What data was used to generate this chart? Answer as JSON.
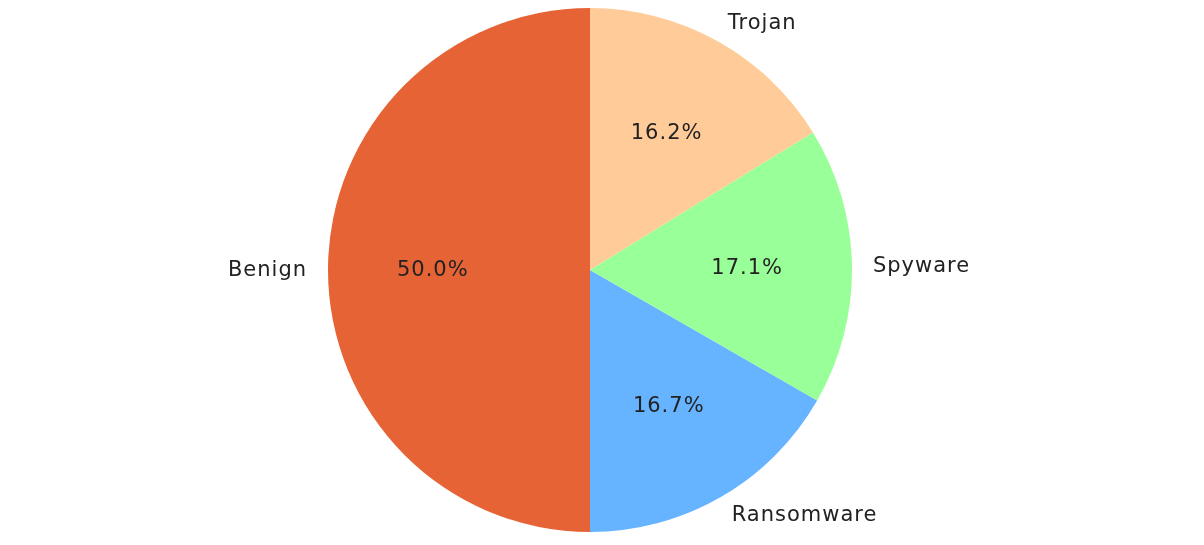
{
  "chart_data": {
    "type": "pie",
    "categories": [
      "Benign",
      "Ransomware",
      "Spyware",
      "Trojan"
    ],
    "values": [
      50.0,
      16.7,
      17.1,
      16.2
    ],
    "value_labels": [
      "50.0%",
      "16.7%",
      "17.1%",
      "16.2%"
    ],
    "colors": [
      "#e66336",
      "#66b3ff",
      "#99ff99",
      "#ffcc99"
    ],
    "legend": false
  }
}
